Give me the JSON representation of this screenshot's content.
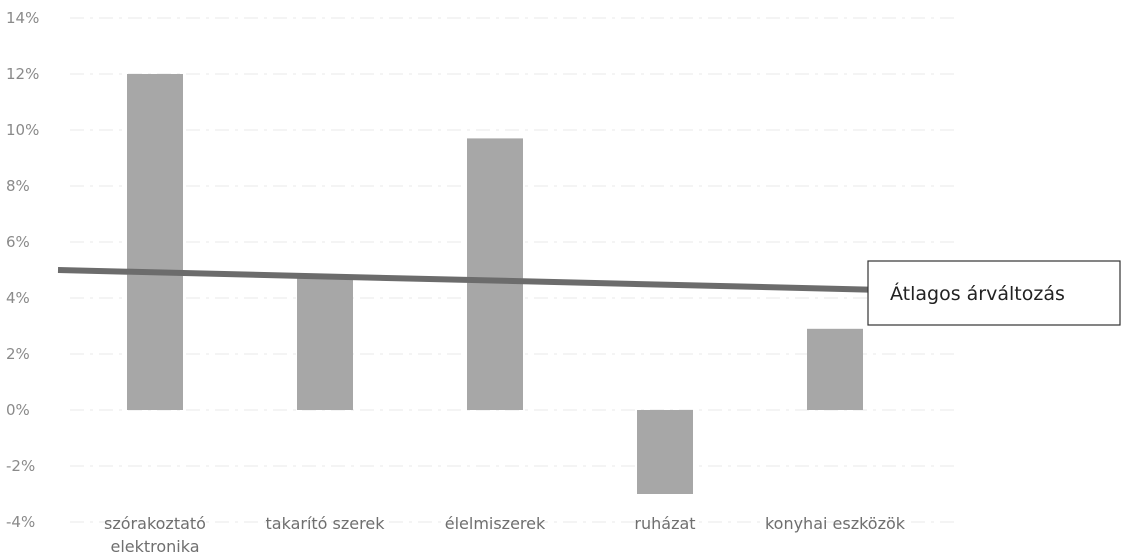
{
  "chart_data": {
    "type": "bar",
    "categories": [
      [
        "szórakoztató",
        "elektronika"
      ],
      [
        "takarító szerek"
      ],
      [
        "élelmiszerek"
      ],
      [
        "ruházat"
      ],
      [
        "konyhai eszközök"
      ]
    ],
    "values": [
      0.12,
      0.047,
      0.097,
      -0.03,
      0.029
    ],
    "y_ticks": [
      "14%",
      "12%",
      "10%",
      "8%",
      "6%",
      "4%",
      "2%",
      "0%",
      "-2%",
      "-4%"
    ],
    "ylim": [
      -0.04,
      0.14
    ],
    "grid": true,
    "title": "",
    "xlabel": "",
    "ylabel": "",
    "average_line": {
      "label": "Átlagos árváltozás",
      "start_value": 0.05,
      "end_value": 0.043
    },
    "colors": {
      "bar": "#a7a7a7",
      "average_line": "#6c6c6c",
      "tick_text": "#8a8a8a",
      "category_text": "#6f6f6f"
    }
  }
}
